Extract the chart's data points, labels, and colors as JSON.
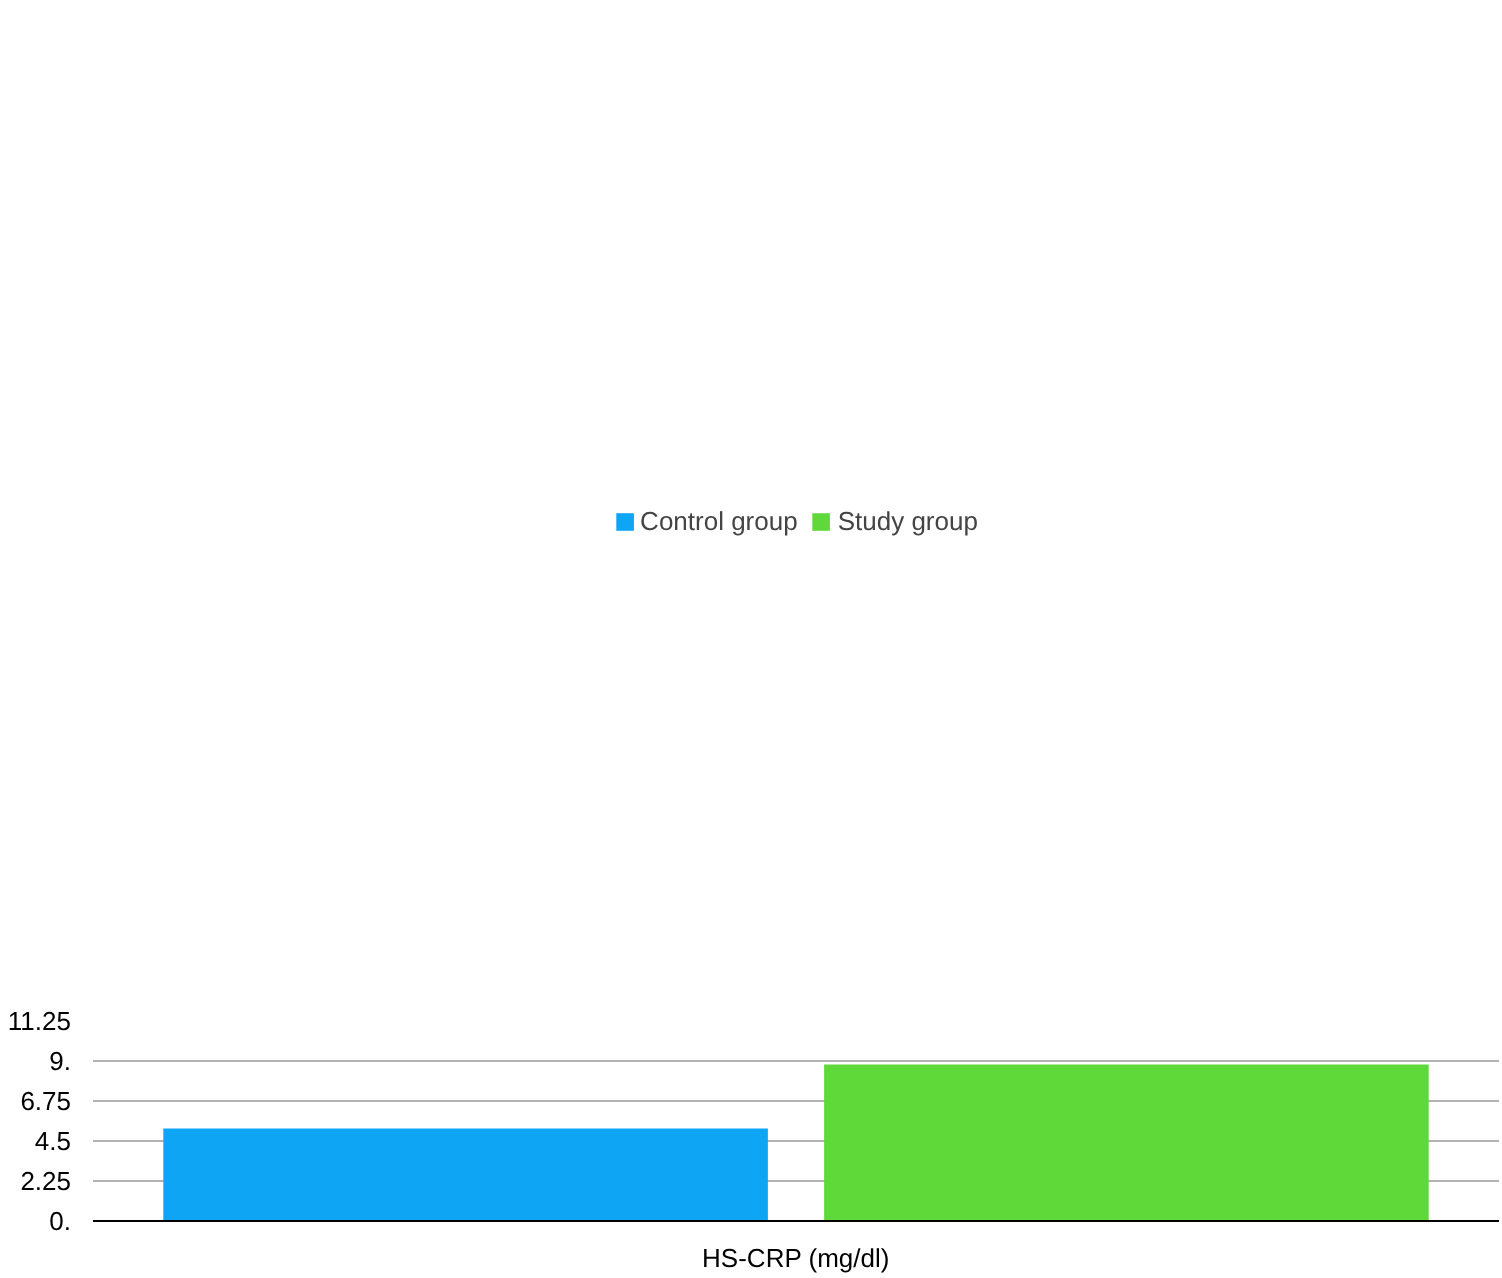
{
  "chart_data": {
    "type": "bar",
    "categories": [
      "HS-CRP (mg/dl)"
    ],
    "series": [
      {
        "name": "Control group",
        "color": "#0ea5f5",
        "values": [
          5.2
        ]
      },
      {
        "name": "Study group",
        "color": "#5fd93a",
        "values": [
          8.8
        ]
      }
    ],
    "ylim": [
      0,
      11.25
    ],
    "yticks": [
      {
        "value": 0,
        "label": "0."
      },
      2.25,
      4.5,
      6.75,
      {
        "value": 9,
        "label": "9."
      },
      11.25
    ],
    "grid": "y",
    "legend": "top"
  }
}
